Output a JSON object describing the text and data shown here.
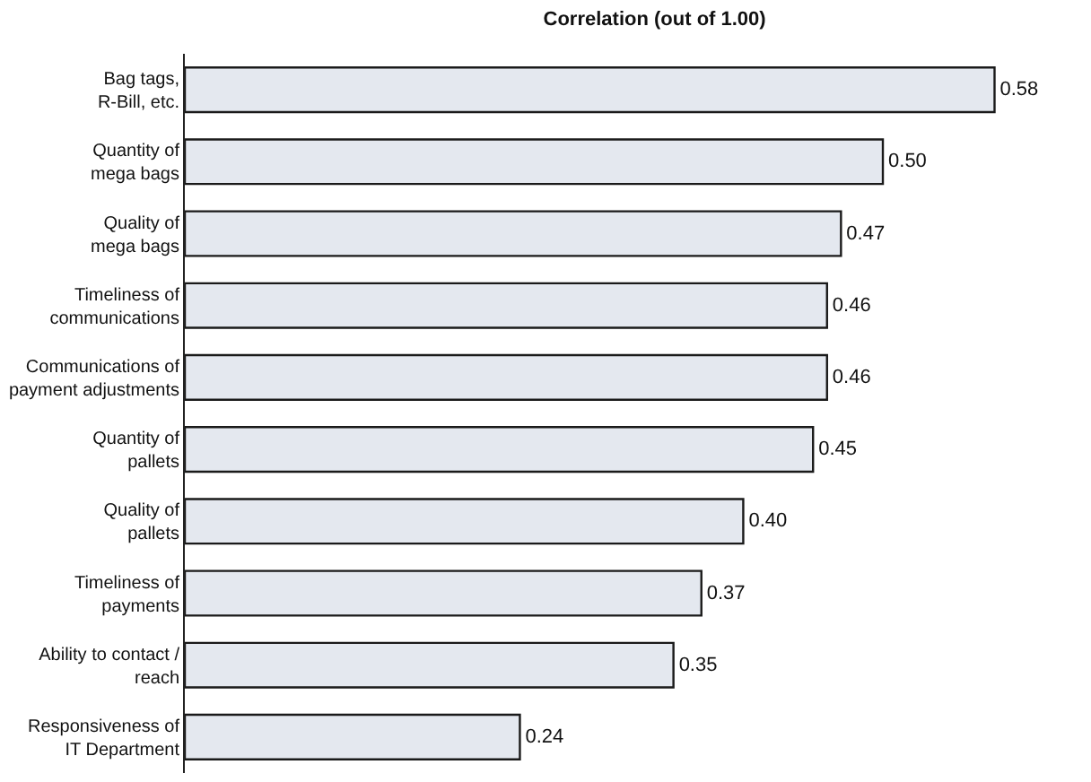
{
  "chart_data": {
    "type": "bar",
    "orientation": "horizontal",
    "title": "Correlation (out of 1.00)",
    "categories": [
      "Bag tags,\nR-Bill, etc.",
      "Quantity of\nmega bags",
      "Quality of\nmega bags",
      "Timeliness of\ncommunications",
      "Communications of\npayment adjustments",
      "Quantity of\npallets",
      "Quality of\npallets",
      "Timeliness of\npayments",
      "Ability to contact /\nreach",
      "Responsiveness of\nIT Department"
    ],
    "values": [
      0.58,
      0.5,
      0.47,
      0.46,
      0.46,
      0.45,
      0.4,
      0.37,
      0.35,
      0.24
    ],
    "value_labels": [
      "0.58",
      "0.50",
      "0.47",
      "0.46",
      "0.46",
      "0.45",
      "0.40",
      "0.37",
      "0.35",
      "0.24"
    ],
    "color": "#e4e8ef",
    "legend": false
  }
}
